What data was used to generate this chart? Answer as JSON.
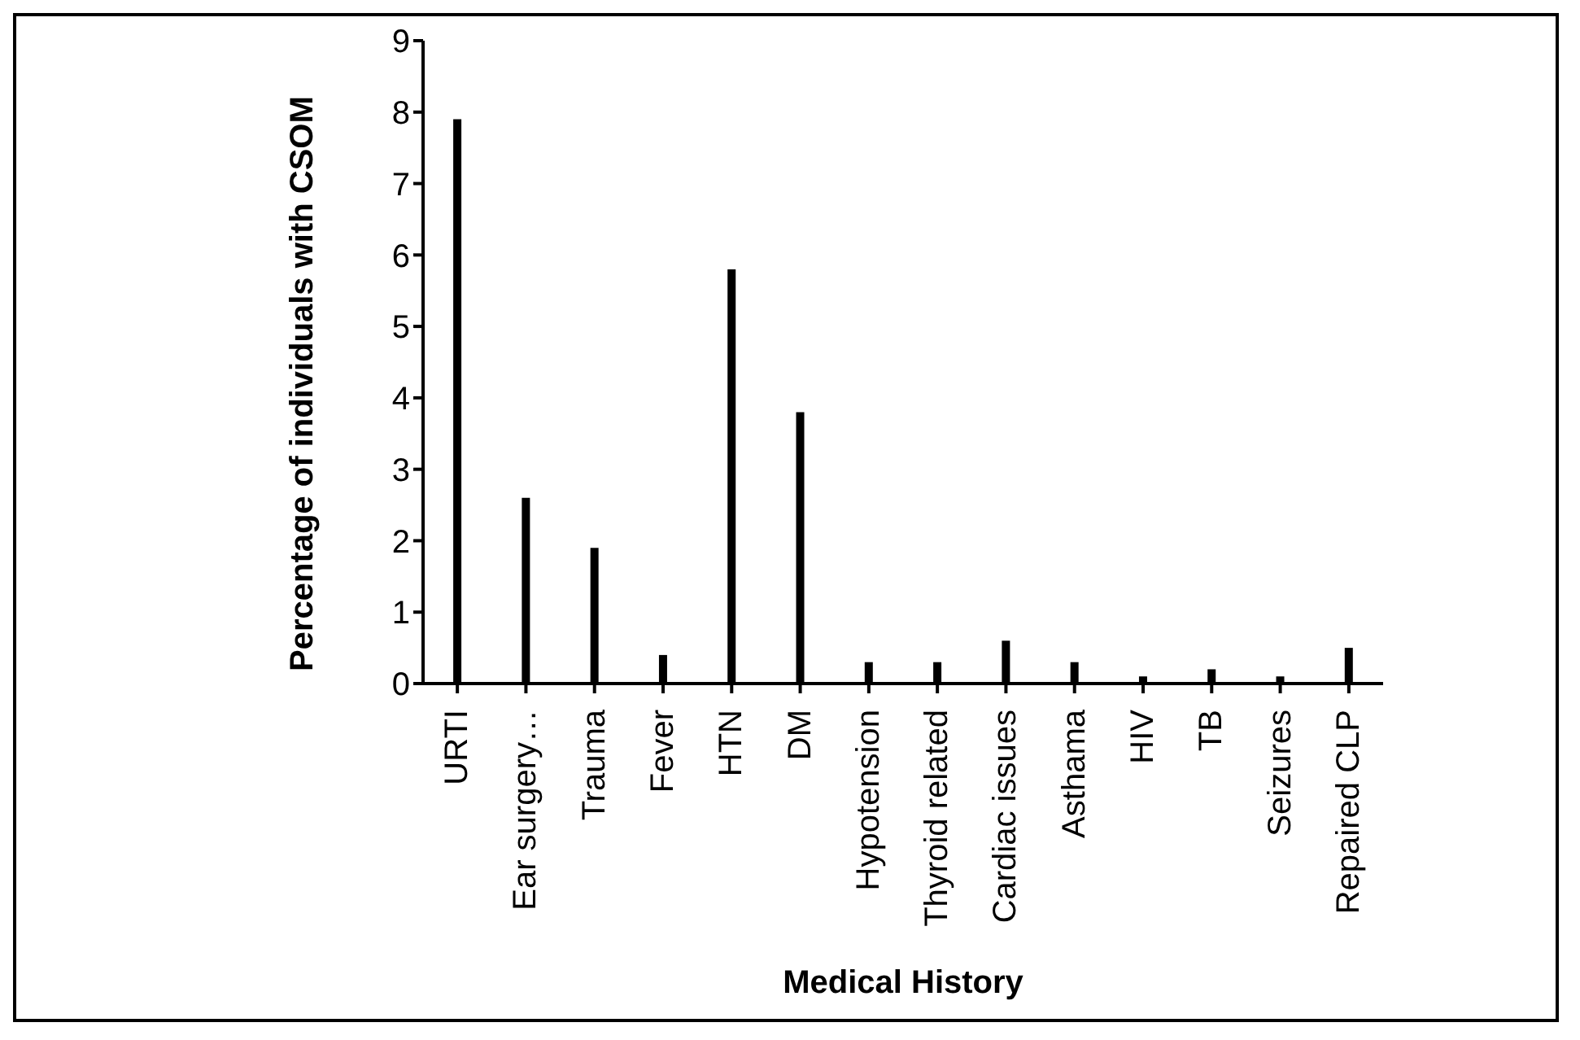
{
  "chart_data": {
    "type": "bar",
    "xlabel": "Medical History",
    "ylabel": "Percentage of individuals with CSOM",
    "categories": [
      "URTI",
      "Ear surgery…",
      "Trauma",
      "Fever",
      "HTN",
      "DM",
      "Hypotension",
      "Thyroid related",
      "Cardiac issues",
      "Asthama",
      "HIV",
      "TB",
      "Seizures",
      "Repaired CLP"
    ],
    "values": [
      7.9,
      2.6,
      1.9,
      0.4,
      5.8,
      3.8,
      0.3,
      0.3,
      0.6,
      0.3,
      0.1,
      0.2,
      0.1,
      0.5
    ],
    "color": "#000000",
    "ylim": [
      0,
      9
    ],
    "yticks": [
      0,
      1,
      2,
      3,
      4,
      5,
      6,
      7,
      8,
      9
    ],
    "grid": false,
    "legend": false
  }
}
